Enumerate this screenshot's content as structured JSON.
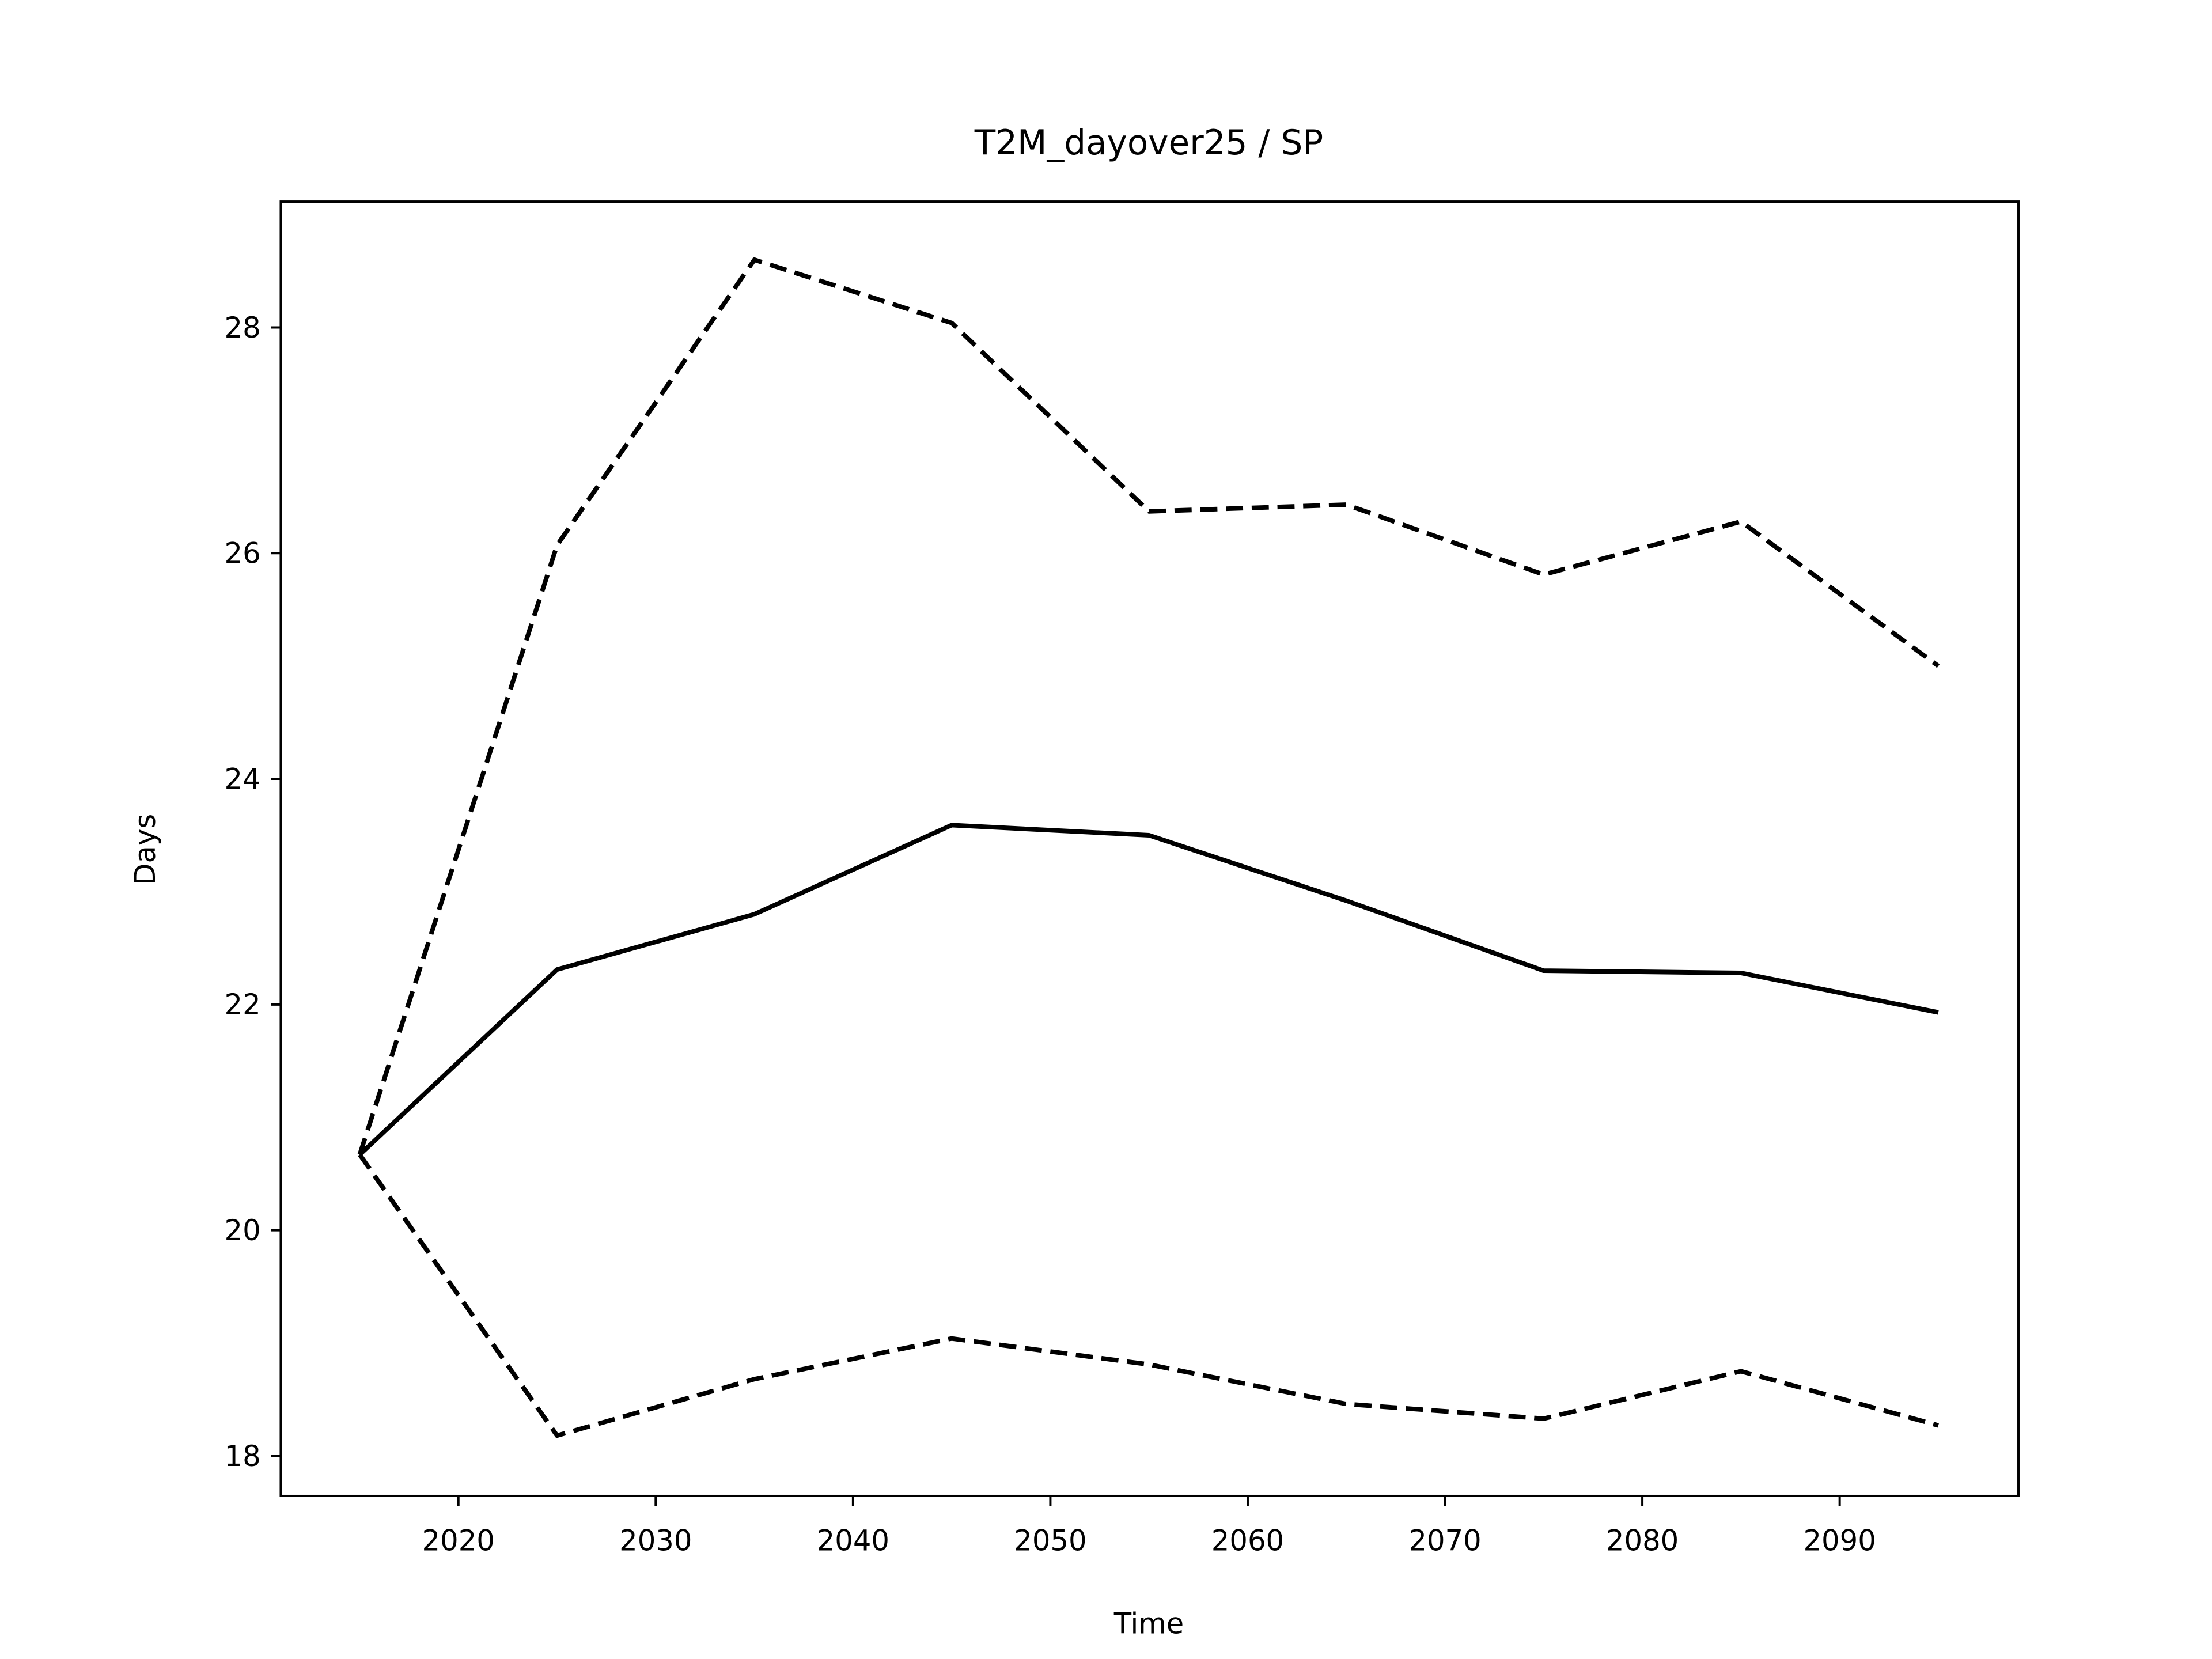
{
  "chart_data": {
    "type": "line",
    "title": "T2M_dayover25 / SP",
    "x_label": "Time",
    "y_label": "Days",
    "x": [
      2015,
      2025,
      2035,
      2045,
      2055,
      2065,
      2075,
      2085,
      2095
    ],
    "series": [
      {
        "color": "#000000",
        "dashed": false,
        "values": [
          20.67,
          22.31,
          22.8,
          23.59,
          23.5,
          22.92,
          22.3,
          22.28,
          21.93
        ]
      },
      {
        "color": "#000000",
        "dashed": true,
        "values": [
          20.67,
          26.07,
          28.6,
          28.04,
          26.37,
          26.43,
          25.81,
          26.28,
          25.0
        ]
      },
      {
        "color": "#000000",
        "dashed": true,
        "values": [
          20.67,
          18.18,
          18.68,
          19.04,
          18.81,
          18.46,
          18.33,
          18.75,
          18.27
        ]
      }
    ],
    "xlim": [
      2011,
      2099.06
    ],
    "ylim": [
      17.645,
      29.115
    ],
    "xticks": [
      2020,
      2030,
      2040,
      2050,
      2060,
      2070,
      2080,
      2090
    ],
    "yticks": [
      18,
      20,
      22,
      24,
      26,
      28
    ]
  }
}
